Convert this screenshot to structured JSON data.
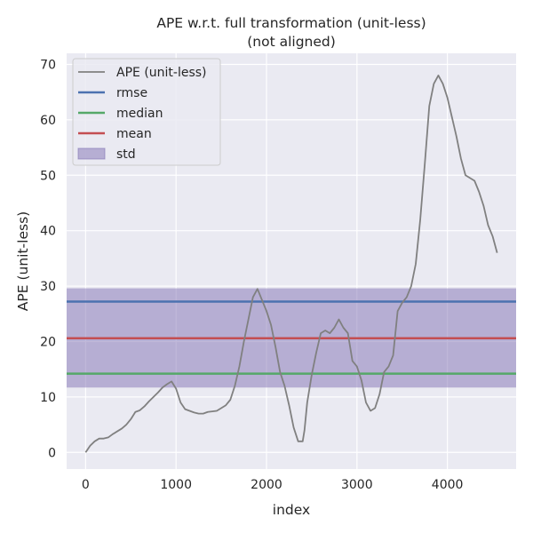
{
  "chart_data": {
    "type": "line",
    "title": "APE w.r.t. full transformation (unit-less)",
    "subtitle": "(not aligned)",
    "xlabel": "index",
    "ylabel": "APE (unit-less)",
    "xlim": [
      -210,
      4760
    ],
    "ylim": [
      -3,
      72
    ],
    "xticks": [
      0,
      1000,
      2000,
      3000,
      4000
    ],
    "yticks": [
      0,
      10,
      20,
      30,
      40,
      50,
      60,
      70
    ],
    "grid": true,
    "legend_position": "top-left",
    "series": [
      {
        "name": "APE (unit-less)",
        "color": "#808080",
        "x": [
          0,
          50,
          100,
          150,
          200,
          250,
          300,
          350,
          400,
          450,
          500,
          550,
          600,
          650,
          700,
          750,
          800,
          850,
          900,
          950,
          1000,
          1050,
          1100,
          1150,
          1200,
          1250,
          1300,
          1350,
          1400,
          1450,
          1500,
          1550,
          1600,
          1650,
          1700,
          1750,
          1800,
          1850,
          1900,
          1950,
          2000,
          2050,
          2100,
          2150,
          2200,
          2250,
          2300,
          2350,
          2400,
          2420,
          2450,
          2500,
          2550,
          2600,
          2650,
          2700,
          2750,
          2800,
          2850,
          2900,
          2950,
          3000,
          3050,
          3100,
          3150,
          3200,
          3250,
          3300,
          3350,
          3400,
          3450,
          3500,
          3550,
          3600,
          3650,
          3700,
          3750,
          3800,
          3850,
          3900,
          3950,
          4000,
          4050,
          4100,
          4150,
          4200,
          4250,
          4300,
          4350,
          4400,
          4450,
          4500,
          4550
        ],
        "y": [
          0,
          1.2,
          2.0,
          2.5,
          2.5,
          2.7,
          3.3,
          3.8,
          4.3,
          5.0,
          6.0,
          7.3,
          7.6,
          8.3,
          9.2,
          10.0,
          10.8,
          11.7,
          12.3,
          12.8,
          11.5,
          9.0,
          7.8,
          7.5,
          7.2,
          7.0,
          7.0,
          7.3,
          7.4,
          7.5,
          8.0,
          8.5,
          9.5,
          12.0,
          15.5,
          20.0,
          24.0,
          28.0,
          29.5,
          27.5,
          25.5,
          23.0,
          19.0,
          14.5,
          12.0,
          8.5,
          4.5,
          2.0,
          2.0,
          4.0,
          9.0,
          14.0,
          18.0,
          21.5,
          22.0,
          21.5,
          22.5,
          24.0,
          22.5,
          21.5,
          16.5,
          15.5,
          13.0,
          9.0,
          7.5,
          8.0,
          10.5,
          14.5,
          15.5,
          17.5,
          25.5,
          27.0,
          28.0,
          30.0,
          34.0,
          42.0,
          52.0,
          62.5,
          66.5,
          68.0,
          66.5,
          64.0,
          60.5,
          57.0,
          53.0,
          50.0,
          49.5,
          49.0,
          47.0,
          44.5,
          41.0,
          39.0,
          36.0
        ]
      },
      {
        "name": "rmse",
        "color": "#4c72b0",
        "value": 27.2
      },
      {
        "name": "median",
        "color": "#55a868",
        "value": 14.2
      },
      {
        "name": "mean",
        "color": "#c44e52",
        "value": 20.6
      },
      {
        "name": "std",
        "color": "#8172b3",
        "range": [
          11.7,
          29.6
        ]
      }
    ]
  }
}
